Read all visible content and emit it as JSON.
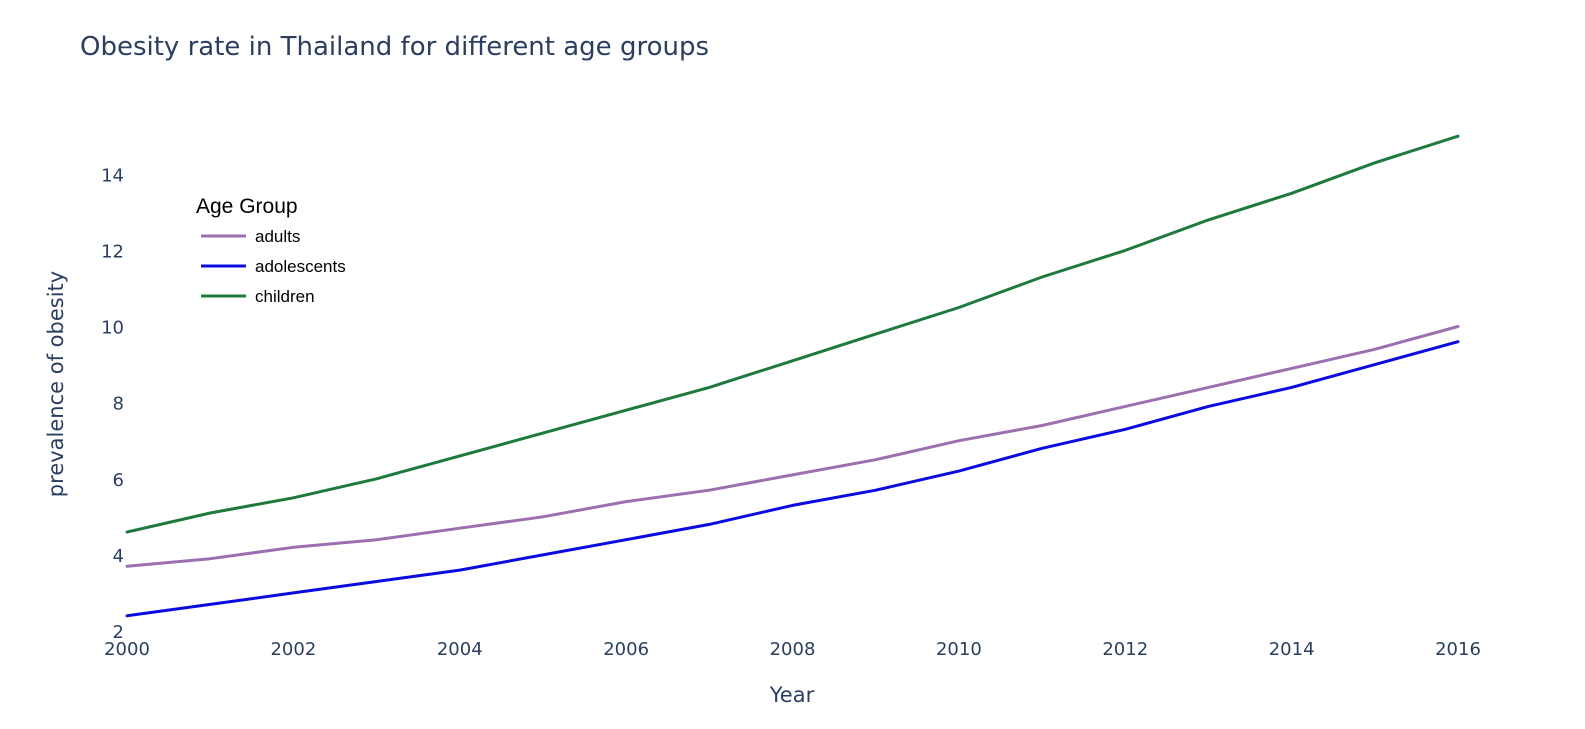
{
  "chart_data": {
    "type": "line",
    "title": "Obesity rate in Thailand for different age groups",
    "xlabel": "Year",
    "ylabel": "prevalence of obesity",
    "x": [
      2000,
      2001,
      2002,
      2003,
      2004,
      2005,
      2006,
      2007,
      2008,
      2009,
      2010,
      2011,
      2012,
      2013,
      2014,
      2015,
      2016
    ],
    "xlim": [
      2000,
      2016
    ],
    "ylim": [
      2,
      14.9
    ],
    "xticks": [
      "2000",
      "2002",
      "2004",
      "2006",
      "2008",
      "2010",
      "2012",
      "2014",
      "2016"
    ],
    "yticks": [
      "2",
      "4",
      "6",
      "8",
      "10",
      "12",
      "14"
    ],
    "grid": false,
    "legend": {
      "title": "Age Group",
      "placement": "top-left"
    },
    "series": [
      {
        "name": "adults",
        "color": "#9b6fb0",
        "values": [
          3.7,
          3.9,
          4.2,
          4.4,
          4.7,
          5.0,
          5.4,
          5.7,
          6.1,
          6.5,
          7.0,
          7.4,
          7.9,
          8.4,
          8.9,
          9.4,
          10.0
        ]
      },
      {
        "name": "adolescents",
        "color": "#0b0be0",
        "values": [
          2.4,
          2.7,
          3.0,
          3.3,
          3.6,
          4.0,
          4.4,
          4.8,
          5.3,
          5.7,
          6.2,
          6.8,
          7.3,
          7.9,
          8.4,
          9.0,
          9.6
        ]
      },
      {
        "name": "children",
        "color": "#1e7a3c",
        "values": [
          4.6,
          5.1,
          5.5,
          6.0,
          6.6,
          7.2,
          7.8,
          8.4,
          9.1,
          9.8,
          10.5,
          11.3,
          12.0,
          12.8,
          13.5,
          14.3,
          15.0
        ]
      }
    ]
  }
}
